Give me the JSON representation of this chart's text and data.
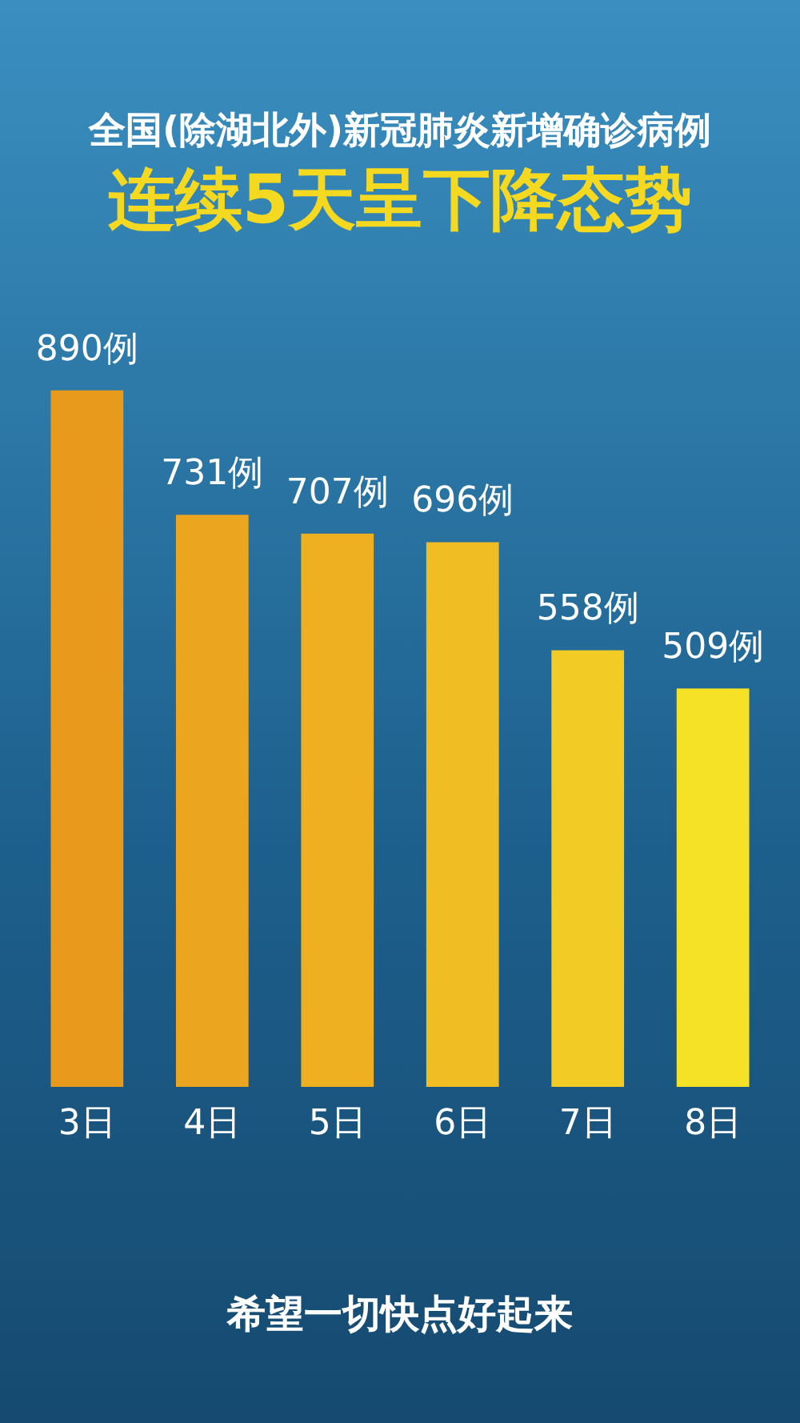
{
  "chart_data": {
    "type": "bar",
    "title": "全国(除湖北外)新冠肺炎新增确诊病例",
    "subtitle": "连续5天呈下降态势",
    "categories": [
      "3日",
      "4日",
      "5日",
      "6日",
      "7日",
      "8日"
    ],
    "values": [
      890,
      731,
      707,
      696,
      558,
      509
    ],
    "colors": [
      "#e89a1c",
      "#eba51e",
      "#eeb020",
      "#f0bd22",
      "#f2cc24",
      "#f5e226"
    ],
    "value_labels": [
      "890例",
      "731例",
      "707例",
      "696例",
      "558例",
      "509例"
    ],
    "annotations": [
      "希望一切快点好起来"
    ]
  }
}
